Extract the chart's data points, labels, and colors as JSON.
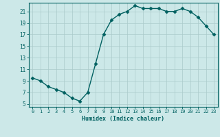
{
  "xlabel": "Humidex (Indice chaleur)",
  "x": [
    0,
    1,
    2,
    3,
    4,
    5,
    6,
    7,
    8,
    9,
    10,
    11,
    12,
    13,
    14,
    15,
    16,
    17,
    18,
    19,
    20,
    21,
    22,
    23
  ],
  "y": [
    9.5,
    9.0,
    8.0,
    7.5,
    7.0,
    6.0,
    5.5,
    7.0,
    12.0,
    17.0,
    19.5,
    20.5,
    21.0,
    22.0,
    21.5,
    21.5,
    21.5,
    21.0,
    21.0,
    21.5,
    21.0,
    20.0,
    18.5,
    17.0
  ],
  "line_color": "#006060",
  "marker": "D",
  "marker_size": 2.5,
  "bg_color": "#cce8e8",
  "grid_color": "#aacaca",
  "axis_color": "#006060",
  "tick_color": "#006060",
  "label_color": "#006060",
  "xlim": [
    -0.5,
    23.5
  ],
  "ylim": [
    4.5,
    22.5
  ],
  "yticks": [
    5,
    7,
    9,
    11,
    13,
    15,
    17,
    19,
    21
  ],
  "xticks": [
    0,
    1,
    2,
    3,
    4,
    5,
    6,
    7,
    8,
    9,
    10,
    11,
    12,
    13,
    14,
    15,
    16,
    17,
    18,
    19,
    20,
    21,
    22,
    23
  ]
}
